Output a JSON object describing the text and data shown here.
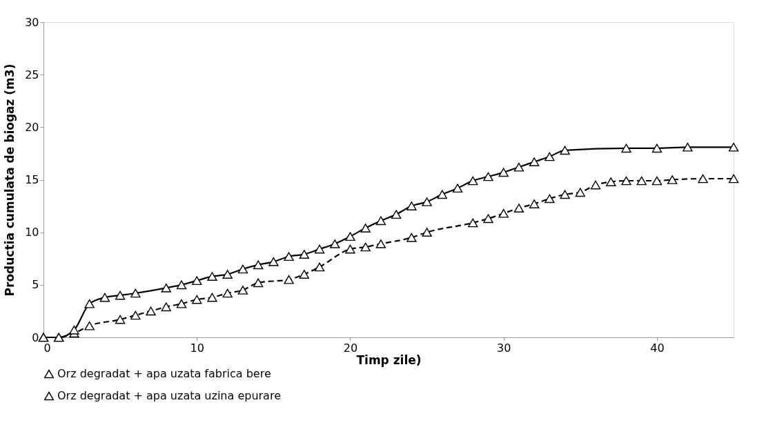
{
  "chart_data": {
    "type": "line",
    "xlabel": "Timp zile)",
    "ylabel": "Productia cumulata de biogaz (m3)",
    "xlim": [
      0,
      45
    ],
    "ylim": [
      0,
      30
    ],
    "xticks": [
      0,
      10,
      20,
      30,
      40
    ],
    "yticks": [
      0,
      5,
      10,
      15,
      20,
      25,
      30
    ],
    "grid": false,
    "legend": "bottom",
    "marker": "triangle",
    "series": [
      {
        "name": "Orz degradat + apa uzata fabrica bere",
        "color": "#000000",
        "line_style": "dashed",
        "x": [
          0,
          1,
          2,
          3,
          5,
          6,
          7,
          8,
          9,
          10,
          11,
          12,
          13,
          14,
          16,
          17,
          18,
          20,
          21,
          22,
          24,
          25,
          28,
          29,
          30,
          31,
          32,
          33,
          34,
          35,
          36,
          37,
          38,
          39,
          40,
          41,
          43,
          45
        ],
        "values": [
          0,
          0,
          0.4,
          1.1,
          1.7,
          2.1,
          2.5,
          2.9,
          3.2,
          3.6,
          3.8,
          4.2,
          4.5,
          5.2,
          5.5,
          6.0,
          6.7,
          8.4,
          8.6,
          8.9,
          9.5,
          10.0,
          10.9,
          11.3,
          11.8,
          12.3,
          12.7,
          13.2,
          13.6,
          13.8,
          14.5,
          14.8,
          14.9,
          14.9,
          14.9,
          15.0,
          15.1,
          15.1
        ]
      },
      {
        "name": "Orz degradat + apa uzata uzina epurare",
        "color": "#000000",
        "line_style": "solid",
        "x": [
          0,
          1,
          2,
          3,
          4,
          5,
          6,
          8,
          9,
          10,
          11,
          12,
          13,
          14,
          15,
          16,
          17,
          18,
          19,
          20,
          21,
          22,
          23,
          24,
          25,
          26,
          27,
          28,
          29,
          30,
          31,
          32,
          33,
          34,
          38,
          40,
          42,
          45
        ],
        "values": [
          0,
          0,
          0.7,
          3.2,
          3.8,
          4.0,
          4.2,
          4.7,
          5.0,
          5.4,
          5.8,
          6.0,
          6.5,
          6.9,
          7.2,
          7.7,
          7.9,
          8.4,
          8.9,
          9.6,
          10.4,
          11.1,
          11.7,
          12.5,
          12.9,
          13.6,
          14.2,
          14.9,
          15.3,
          15.7,
          16.2,
          16.7,
          17.2,
          17.8,
          18.0,
          18.0,
          18.1,
          18.1
        ]
      }
    ]
  }
}
